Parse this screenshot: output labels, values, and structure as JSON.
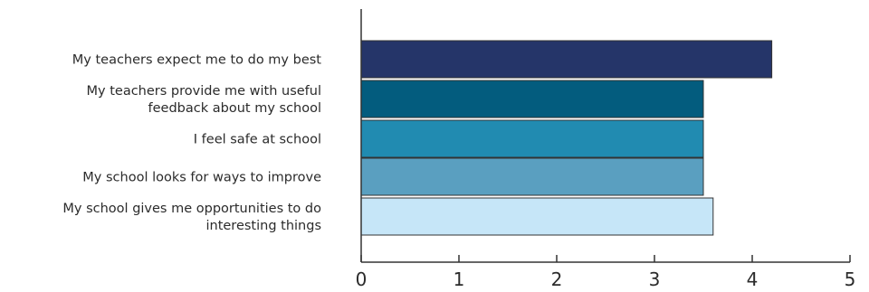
{
  "chart_data": {
    "type": "bar",
    "orientation": "horizontal",
    "categories": [
      [
        "My teachers expect me to do my best"
      ],
      [
        "My teachers provide me with useful",
        "feedback about my school"
      ],
      [
        "I feel safe at school"
      ],
      [
        "My school looks for ways to improve"
      ],
      [
        "My school gives me opportunities to do",
        "interesting things"
      ]
    ],
    "values": [
      4.2,
      3.5,
      3.5,
      3.5,
      3.6
    ],
    "colors": [
      "#253569",
      "#035c7e",
      "#218bb1",
      "#5a9fc0",
      "#c6e6f8"
    ],
    "bar_outline": "#333333",
    "xlim": [
      0,
      5
    ],
    "xticks": [
      "0",
      "1",
      "2",
      "3",
      "4",
      "5"
    ],
    "title": "",
    "xlabel": "",
    "ylabel": "",
    "grid": false,
    "legend": "none"
  }
}
